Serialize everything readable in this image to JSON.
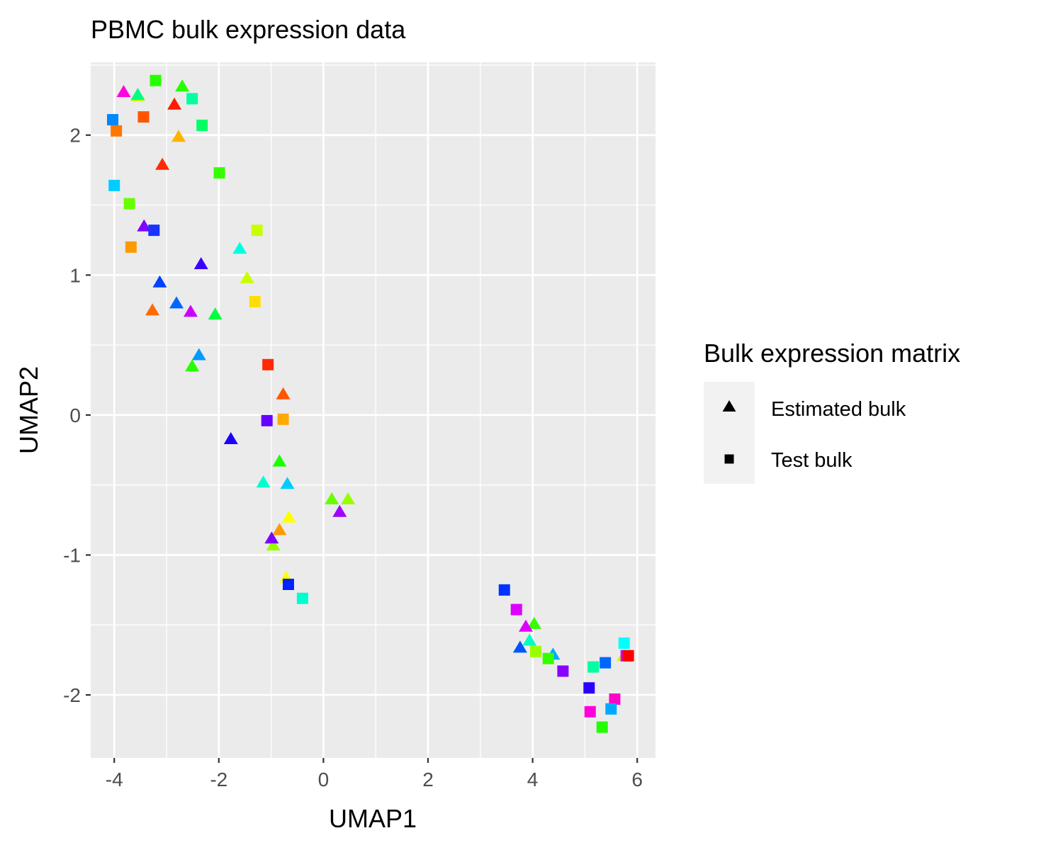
{
  "chart_data": {
    "type": "scatter",
    "title": "PBMC bulk expression data",
    "xlabel": "UMAP1",
    "ylabel": "UMAP2",
    "xlim": [
      -4.45,
      6.35
    ],
    "ylim": [
      -2.45,
      2.52
    ],
    "xticks": [
      -4,
      -2,
      0,
      2,
      4,
      6
    ],
    "xtick_labels": [
      "-4",
      "-2",
      "0",
      "2",
      "4",
      "6"
    ],
    "yticks": [
      -2,
      -1,
      0,
      1,
      2
    ],
    "ytick_labels": [
      "-2",
      "-1",
      "0",
      "1",
      "2"
    ],
    "grid": true,
    "panel_background": "#ebebeb",
    "legend": {
      "title": "Bulk expression matrix",
      "position": "right",
      "entries": [
        {
          "label": "Estimated bulk",
          "shape": "triangle"
        },
        {
          "label": "Test bulk",
          "shape": "square"
        }
      ]
    },
    "series": [
      {
        "name": "Estimated bulk",
        "shape": "triangle",
        "points": [
          {
            "x": -3.82,
            "y": 2.31,
            "color": "#ff00e0"
          },
          {
            "x": -3.55,
            "y": 2.28,
            "color": "#c8ff00"
          },
          {
            "x": -3.55,
            "y": 2.29,
            "color": "#00ff80"
          },
          {
            "x": -2.7,
            "y": 2.35,
            "color": "#26ff00"
          },
          {
            "x": -2.85,
            "y": 2.22,
            "color": "#ff1a00"
          },
          {
            "x": -2.77,
            "y": 1.99,
            "color": "#ffb300"
          },
          {
            "x": -3.08,
            "y": 1.79,
            "color": "#ff2a00"
          },
          {
            "x": -3.43,
            "y": 1.35,
            "color": "#8000ff"
          },
          {
            "x": -2.34,
            "y": 1.08,
            "color": "#3a00ff"
          },
          {
            "x": -3.13,
            "y": 0.95,
            "color": "#0040ff"
          },
          {
            "x": -2.81,
            "y": 0.8,
            "color": "#0066ff"
          },
          {
            "x": -3.27,
            "y": 0.75,
            "color": "#ff6a00"
          },
          {
            "x": -2.54,
            "y": 0.74,
            "color": "#cc00ff"
          },
          {
            "x": -2.07,
            "y": 0.72,
            "color": "#00ff40"
          },
          {
            "x": -1.6,
            "y": 1.19,
            "color": "#00ffe0"
          },
          {
            "x": -1.46,
            "y": 0.98,
            "color": "#c8ff00"
          },
          {
            "x": -2.38,
            "y": 0.43,
            "color": "#0099ff"
          },
          {
            "x": -2.51,
            "y": 0.35,
            "color": "#26ff00"
          },
          {
            "x": -0.77,
            "y": 0.15,
            "color": "#ff5500"
          },
          {
            "x": -1.77,
            "y": -0.17,
            "color": "#1a00ff"
          },
          {
            "x": -0.84,
            "y": -0.33,
            "color": "#1aff00"
          },
          {
            "x": -1.15,
            "y": -0.48,
            "color": "#00ffd0"
          },
          {
            "x": -0.69,
            "y": -0.49,
            "color": "#00ccff"
          },
          {
            "x": 0.16,
            "y": -0.6,
            "color": "#66ff00"
          },
          {
            "x": 0.47,
            "y": -0.6,
            "color": "#99ff00"
          },
          {
            "x": 0.31,
            "y": -0.69,
            "color": "#a000ff"
          },
          {
            "x": -0.66,
            "y": -0.73,
            "color": "#ffff00"
          },
          {
            "x": -0.84,
            "y": -0.82,
            "color": "#ff9900"
          },
          {
            "x": -0.96,
            "y": -0.93,
            "color": "#99ff00"
          },
          {
            "x": -0.99,
            "y": -0.88,
            "color": "#8000ff"
          },
          {
            "x": -0.71,
            "y": -1.16,
            "color": "#ffff00"
          },
          {
            "x": 4.03,
            "y": -1.49,
            "color": "#33ff00"
          },
          {
            "x": 3.87,
            "y": -1.51,
            "color": "#e000ff"
          },
          {
            "x": 3.94,
            "y": -1.61,
            "color": "#00ffc0"
          },
          {
            "x": 3.76,
            "y": -1.66,
            "color": "#0055ff"
          },
          {
            "x": 4.39,
            "y": -1.71,
            "color": "#00aaff"
          },
          {
            "x": 5.74,
            "y": -1.72,
            "color": "#c8ff00"
          }
        ]
      },
      {
        "name": "Test bulk",
        "shape": "square",
        "points": [
          {
            "x": -3.21,
            "y": 2.39,
            "color": "#26ff00"
          },
          {
            "x": -2.51,
            "y": 2.26,
            "color": "#00ffa0"
          },
          {
            "x": -3.44,
            "y": 2.13,
            "color": "#ff5500"
          },
          {
            "x": -4.03,
            "y": 2.11,
            "color": "#0088ff"
          },
          {
            "x": -3.96,
            "y": 2.03,
            "color": "#ff7700"
          },
          {
            "x": -2.32,
            "y": 2.07,
            "color": "#00ff66"
          },
          {
            "x": -1.99,
            "y": 1.73,
            "color": "#33ff00"
          },
          {
            "x": -4.0,
            "y": 1.64,
            "color": "#00ccff"
          },
          {
            "x": -3.71,
            "y": 1.51,
            "color": "#66ff00"
          },
          {
            "x": -3.24,
            "y": 1.32,
            "color": "#1a33ff"
          },
          {
            "x": -3.68,
            "y": 1.2,
            "color": "#ff9900"
          },
          {
            "x": -1.27,
            "y": 1.32,
            "color": "#c8ff00"
          },
          {
            "x": -1.31,
            "y": 0.81,
            "color": "#ffdd00"
          },
          {
            "x": -1.06,
            "y": 0.36,
            "color": "#ff2a00"
          },
          {
            "x": -1.08,
            "y": -0.04,
            "color": "#6600ff"
          },
          {
            "x": -0.77,
            "y": -0.03,
            "color": "#ffaa00"
          },
          {
            "x": -0.67,
            "y": -1.21,
            "color": "#0022ff"
          },
          {
            "x": -0.4,
            "y": -1.31,
            "color": "#00ffd0"
          },
          {
            "x": 3.46,
            "y": -1.25,
            "color": "#0033ff"
          },
          {
            "x": 3.69,
            "y": -1.39,
            "color": "#dd00ff"
          },
          {
            "x": 4.06,
            "y": -1.69,
            "color": "#99ff00"
          },
          {
            "x": 4.3,
            "y": -1.74,
            "color": "#33ff00"
          },
          {
            "x": 4.58,
            "y": -1.83,
            "color": "#8800ff"
          },
          {
            "x": 5.16,
            "y": -1.8,
            "color": "#00ffa0"
          },
          {
            "x": 5.39,
            "y": -1.77,
            "color": "#0066ff"
          },
          {
            "x": 5.75,
            "y": -1.63,
            "color": "#00ffff"
          },
          {
            "x": 5.79,
            "y": -1.72,
            "color": "#cc00ff"
          },
          {
            "x": 5.83,
            "y": -1.72,
            "color": "#ff0000"
          },
          {
            "x": 5.08,
            "y": -1.95,
            "color": "#2a00ff"
          },
          {
            "x": 5.57,
            "y": -2.03,
            "color": "#ff00cc"
          },
          {
            "x": 5.1,
            "y": -2.12,
            "color": "#ff00dd"
          },
          {
            "x": 5.5,
            "y": -2.1,
            "color": "#00aaff"
          },
          {
            "x": 5.33,
            "y": -2.23,
            "color": "#22ff00"
          }
        ]
      }
    ]
  }
}
